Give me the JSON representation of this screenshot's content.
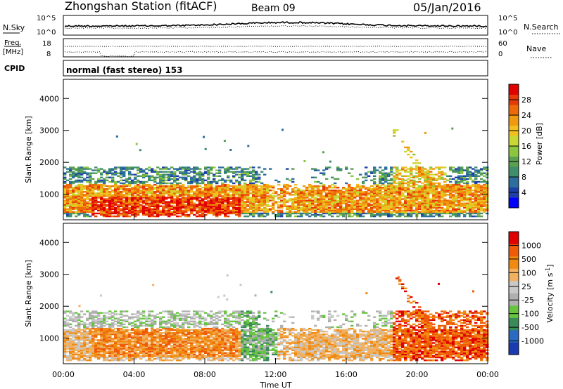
{
  "header": {
    "station": "Zhongshan Station (fitACF)",
    "beam": "Beam 09",
    "date": "05/Jan/2016"
  },
  "strip_panels": {
    "nsky": {
      "left_label": "N.Sky",
      "right_label": "N.Search",
      "left_ticks": [
        "10^5",
        "10^0"
      ],
      "right_ticks": [
        "10^5",
        "10^0"
      ]
    },
    "freq": {
      "left_label_line1": "Freq.",
      "left_label_line2": "[MHz]",
      "right_label": "Nave",
      "left_ticks": [
        "18",
        "8"
      ],
      "right_ticks": [
        "60",
        "0"
      ]
    },
    "cpid": {
      "label": "CPID",
      "text": "normal (fast stereo) 153"
    }
  },
  "chart_data": [
    {
      "type": "heatmap",
      "name": "power",
      "ylabel": "Slant Range [km]",
      "ylim": [
        200,
        4600
      ],
      "yticks": [
        "1000",
        "2000",
        "3000",
        "4000"
      ],
      "xlim": [
        "00:00",
        "24:00"
      ],
      "colorbar": {
        "label": "Power [dB]",
        "ticks": [
          "4",
          "8",
          "12",
          "16",
          "20",
          "24",
          "28"
        ],
        "colors": [
          "#0000ff",
          "#1f3fa8",
          "#2d6e9e",
          "#3f8f6c",
          "#5aa050",
          "#8cc63f",
          "#c8d832",
          "#f0c020",
          "#f09a10",
          "#ee6a08",
          "#e63a06",
          "#e00000"
        ]
      },
      "grid": false
    },
    {
      "type": "heatmap",
      "name": "velocity",
      "ylabel": "Slant Range [km]",
      "ylim": [
        200,
        4600
      ],
      "yticks": [
        "1000",
        "2000",
        "3000",
        "4000"
      ],
      "xlim": [
        "00:00",
        "24:00"
      ],
      "xlabel": "Time UT",
      "xticks": [
        "00:00",
        "04:00",
        "08:00",
        "12:00",
        "16:00",
        "20:00",
        "00:00"
      ],
      "colorbar": {
        "label_main": "Velocity",
        "label_unit": "[m s",
        "label_sup": "-1",
        "label_close": "]",
        "ticks": [
          "1000",
          "500",
          "100",
          "25",
          "-25",
          "-100",
          "-500",
          "-1000"
        ],
        "colors": [
          "#1a3ab0",
          "#2a6ac0",
          "#3a8a5a",
          "#66c440",
          "#b0b0b0",
          "#c8c8c8",
          "#f0b060",
          "#f08a10",
          "#ee5a08",
          "#e00000"
        ]
      },
      "grid": false
    }
  ]
}
